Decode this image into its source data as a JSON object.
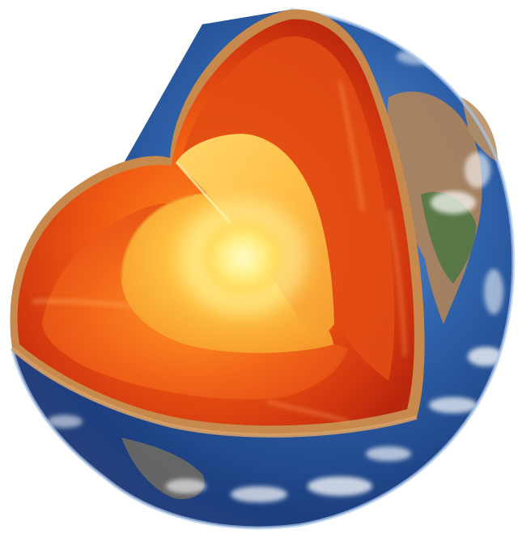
{
  "image": {
    "subject": "earth-cutaway",
    "layers": [
      {
        "name": "crust",
        "color": "#c98a4a"
      },
      {
        "name": "upper-mantle",
        "color": "#d9401a"
      },
      {
        "name": "lower-mantle",
        "color": "#e85a14"
      },
      {
        "name": "outer-core",
        "color": "#f7a52e"
      },
      {
        "name": "inner-core",
        "color": "#fff07a"
      }
    ],
    "surface_colors": {
      "ocean": "#2d5fa8",
      "land": "#a67a4e",
      "cloud": "#ffffff",
      "vegetation": "#5f7a38"
    }
  }
}
